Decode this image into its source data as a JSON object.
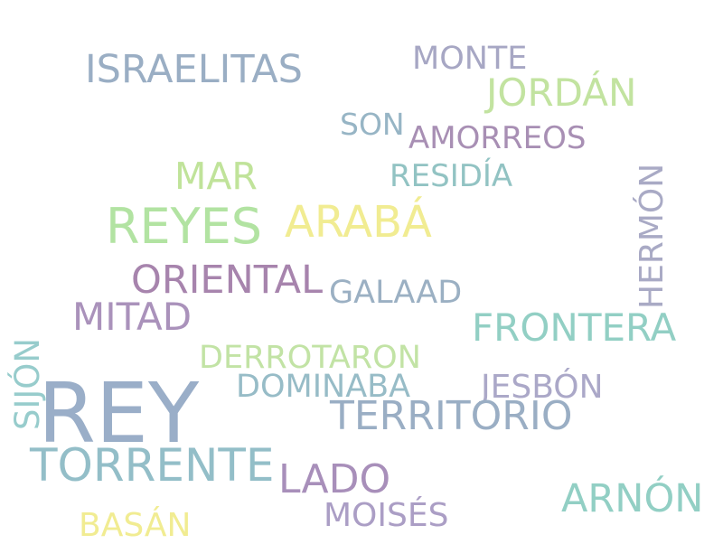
{
  "wordcloud": {
    "words": [
      {
        "id": "israelitas",
        "text": "ISRAELITAS",
        "color": "#9aaec4"
      },
      {
        "id": "monte",
        "text": "MONTE",
        "color": "#a7a7c4"
      },
      {
        "id": "jordan",
        "text": "JORDÁN",
        "color": "#c2e3a0"
      },
      {
        "id": "son",
        "text": "SON",
        "color": "#97b5c5"
      },
      {
        "id": "amorreos",
        "text": "AMORREOS",
        "color": "#a88fb4"
      },
      {
        "id": "mar",
        "text": "MAR",
        "color": "#c0e39a"
      },
      {
        "id": "residia",
        "text": "RESIDÍA",
        "color": "#92c3c3"
      },
      {
        "id": "reyes",
        "text": "REYES",
        "color": "#b2e3a2"
      },
      {
        "id": "araba",
        "text": "ARABÁ",
        "color": "#f1ec92"
      },
      {
        "id": "hermon",
        "text": "HERMÓN",
        "color": "#a9aac5"
      },
      {
        "id": "oriental",
        "text": "ORIENTAL",
        "color": "#a784ad"
      },
      {
        "id": "galaad",
        "text": "GALAAD",
        "color": "#9bb0c3"
      },
      {
        "id": "mitad",
        "text": "MITAD",
        "color": "#aa92bb"
      },
      {
        "id": "frontera",
        "text": "FRONTERA",
        "color": "#92cfc4"
      },
      {
        "id": "sijon",
        "text": "SIJÓN",
        "color": "#97cccc"
      },
      {
        "id": "derrotaron",
        "text": "DERROTARON",
        "color": "#c2e3a5"
      },
      {
        "id": "dominaba",
        "text": "DOMINABA",
        "color": "#97bcc7"
      },
      {
        "id": "jesbon",
        "text": "JESBÓN",
        "color": "#aba8c8"
      },
      {
        "id": "rey",
        "text": "REY",
        "color": "#9aaec8"
      },
      {
        "id": "territorio",
        "text": "TERRITORIO",
        "color": "#9aaec4"
      },
      {
        "id": "torrente",
        "text": "TORRENTE",
        "color": "#93bec8"
      },
      {
        "id": "lado",
        "text": "LADO",
        "color": "#a88fba"
      },
      {
        "id": "arnon",
        "text": "ARNÓN",
        "color": "#92cfc4"
      },
      {
        "id": "moises",
        "text": "MOISÉS",
        "color": "#ab9ec5"
      },
      {
        "id": "basan",
        "text": "BASÁN",
        "color": "#f1ec92"
      }
    ]
  }
}
